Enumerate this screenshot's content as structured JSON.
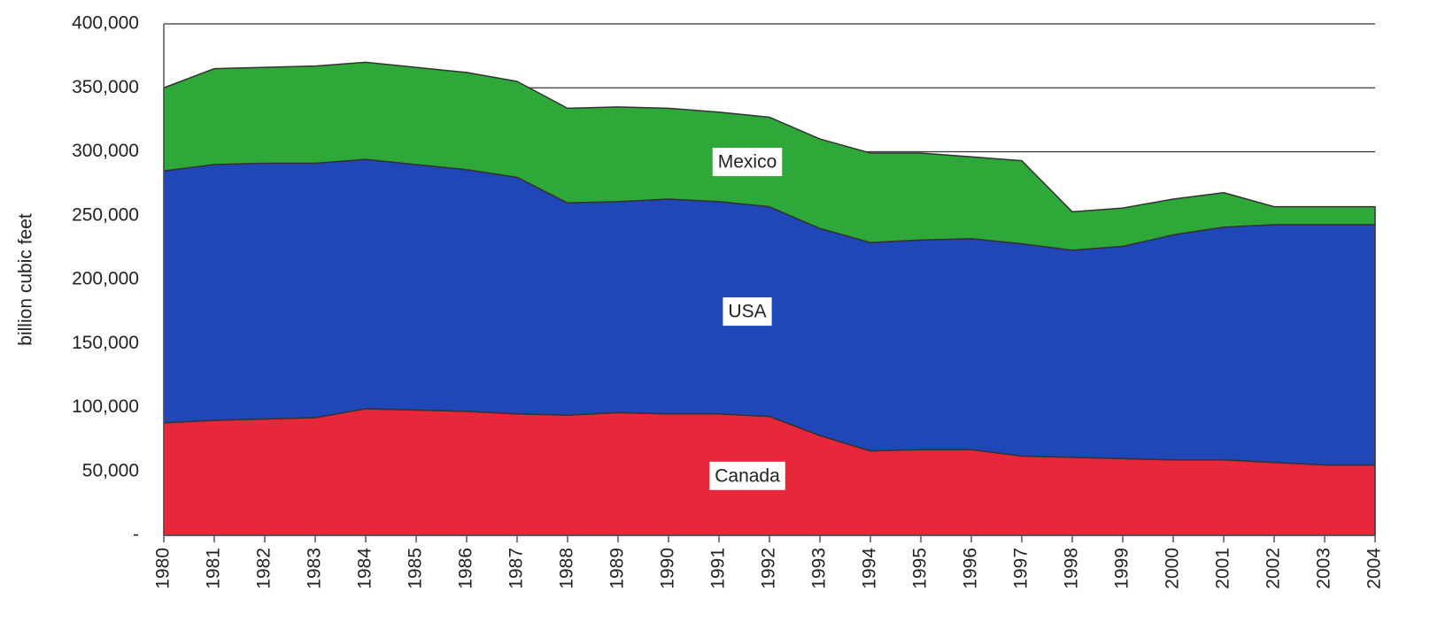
{
  "chart_data": {
    "type": "stacked_area",
    "y_label": "billion cubic feet",
    "categories": [
      "1980",
      "1981",
      "1982",
      "1983",
      "1984",
      "1985",
      "1986",
      "1987",
      "1988",
      "1989",
      "1990",
      "1991",
      "1992",
      "1993",
      "1994",
      "1995",
      "1996",
      "1997",
      "1998",
      "1999",
      "2000",
      "2001",
      "2002",
      "2003",
      "2004"
    ],
    "series": [
      {
        "name": "Canada",
        "color": "#e8283a",
        "values": [
          88000,
          90000,
          91000,
          92000,
          99000,
          98000,
          97000,
          95000,
          94000,
          96000,
          95000,
          95000,
          93000,
          78000,
          66000,
          67000,
          67000,
          62000,
          61000,
          60000,
          59000,
          59000,
          57000,
          55000,
          55000
        ]
      },
      {
        "name": "USA",
        "color": "#1f47b8",
        "values": [
          197000,
          200000,
          200000,
          199000,
          195000,
          192000,
          189000,
          185000,
          166000,
          165000,
          168000,
          166000,
          164000,
          162000,
          163000,
          164000,
          165000,
          166000,
          162000,
          166000,
          176000,
          182000,
          186000,
          188000,
          188000
        ]
      },
      {
        "name": "Mexico",
        "color": "#2ea838",
        "values": [
          65000,
          75000,
          75000,
          76000,
          76000,
          76000,
          76000,
          75000,
          74000,
          74000,
          71000,
          70000,
          70000,
          70000,
          70000,
          68000,
          64000,
          65000,
          30000,
          30000,
          28000,
          27000,
          14000,
          14000,
          14000
        ]
      }
    ],
    "ylim": [
      0,
      400000
    ],
    "yticks": [
      {
        "value": 0,
        "label": "-"
      },
      {
        "value": 50000,
        "label": "50,000"
      },
      {
        "value": 100000,
        "label": "100,000"
      },
      {
        "value": 150000,
        "label": "150,000"
      },
      {
        "value": 200000,
        "label": "200,000"
      },
      {
        "value": 250000,
        "label": "250,000"
      },
      {
        "value": 300000,
        "label": "300,000"
      },
      {
        "value": 350000,
        "label": "350,000"
      },
      {
        "value": 400000,
        "label": "400,000"
      }
    ],
    "grid": true
  }
}
